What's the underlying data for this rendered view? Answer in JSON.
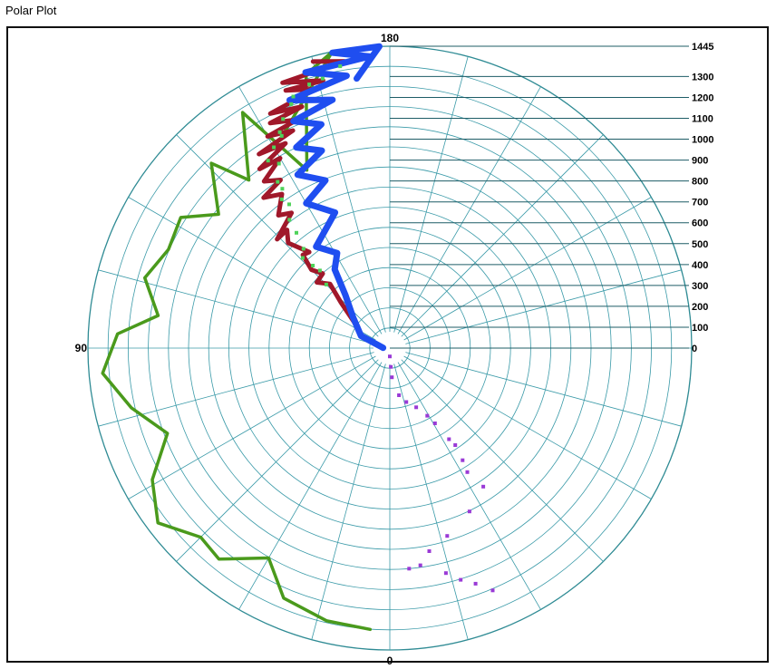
{
  "window": {
    "title": "Polar Plot"
  },
  "colors": {
    "grid": "#3a9aa8",
    "rim": "#2f8b94",
    "tick_line": "#1d5c66",
    "green": "#4a9a1c",
    "red": "#a0182a",
    "blue": "#1f4ef0",
    "green_dots": "#4fd35a",
    "purple_dots": "#9a3ad6"
  },
  "chart_data": {
    "type": "polar",
    "title": "",
    "angle_labels": {
      "top": "180",
      "left": "90",
      "bottom": "0"
    },
    "radial_ticks": [
      "1445",
      "1300",
      "1200",
      "1100",
      "1000",
      "900",
      "800",
      "700",
      "600",
      "500",
      "400",
      "300",
      "200",
      "100",
      "0"
    ],
    "radial_tick_values": [
      1445,
      1300,
      1200,
      1100,
      1000,
      900,
      800,
      700,
      600,
      500,
      400,
      300,
      200,
      100,
      0
    ],
    "r_range": [
      0,
      1445
    ],
    "rings": 15,
    "spokes_deg": 15,
    "grid": true,
    "series": [
      {
        "type": "line",
        "color": "green",
        "points": [
          [
            152,
            1125
          ],
          [
            169,
            1445
          ],
          [
            163,
            1370
          ],
          [
            155,
            940
          ],
          [
            148,
            1330
          ],
          [
            140,
            1050
          ],
          [
            136,
            1230
          ],
          [
            128,
            1040
          ],
          [
            122,
            1180
          ],
          [
            114,
            1160
          ],
          [
            106,
            1220
          ],
          [
            98,
            1120
          ],
          [
            93,
            1305
          ],
          [
            85,
            1380
          ],
          [
            77,
            1270
          ],
          [
            69,
            1140
          ],
          [
            61,
            1300
          ],
          [
            53,
            1390
          ],
          [
            45,
            1280
          ],
          [
            39,
            1300
          ],
          [
            30,
            1160
          ],
          [
            23,
            1300
          ],
          [
            13,
            1340
          ],
          [
            4,
            1350
          ]
        ]
      },
      {
        "type": "line",
        "color": "red",
        "points": [
          [
            92,
            32
          ],
          [
            111,
            140
          ],
          [
            126,
            210
          ],
          [
            133,
            320
          ],
          [
            137,
            420
          ],
          [
            132,
            470
          ],
          [
            138,
            480
          ],
          [
            135,
            530
          ],
          [
            137,
            610
          ],
          [
            140,
            600
          ],
          [
            136,
            700
          ],
          [
            139,
            750
          ],
          [
            134,
            750
          ],
          [
            144,
            800
          ],
          [
            140,
            830
          ],
          [
            145,
            900
          ],
          [
            140,
            940
          ],
          [
            147,
            960
          ],
          [
            143,
            1000
          ],
          [
            150,
            1050
          ],
          [
            144,
            1060
          ],
          [
            153,
            1100
          ],
          [
            146,
            1120
          ],
          [
            156,
            1140
          ],
          [
            150,
            1170
          ],
          [
            158,
            1180
          ],
          [
            152,
            1220
          ],
          [
            160,
            1230
          ],
          [
            153,
            1260
          ],
          [
            164,
            1290
          ],
          [
            158,
            1330
          ],
          [
            166,
            1320
          ],
          [
            158,
            1370
          ],
          [
            171,
            1390
          ],
          [
            165,
            1420
          ]
        ]
      },
      {
        "type": "line",
        "color": "blue",
        "points": [
          [
            92,
            32
          ],
          [
            113,
            150
          ],
          [
            130,
            230
          ],
          [
            140,
            330
          ],
          [
            145,
            460
          ],
          [
            151,
            520
          ],
          [
            144,
            600
          ],
          [
            158,
            700
          ],
          [
            150,
            800
          ],
          [
            159,
            860
          ],
          [
            152,
            940
          ],
          [
            161,
            1000
          ],
          [
            155,
            1060
          ],
          [
            163,
            1120
          ],
          [
            157,
            1180
          ],
          [
            167,
            1220
          ],
          [
            158,
            1280
          ],
          [
            171,
            1320
          ],
          [
            163,
            1380
          ],
          [
            176,
            1400
          ],
          [
            169,
            1440
          ],
          [
            178,
            1445
          ],
          [
            173,
            1300
          ]
        ]
      },
      {
        "type": "scatter",
        "color": "green_dots",
        "points": [
          [
            135,
            430
          ],
          [
            138,
            500
          ],
          [
            137,
            540
          ],
          [
            136,
            600
          ],
          [
            139,
            630
          ],
          [
            141,
            710
          ],
          [
            142,
            780
          ],
          [
            145,
            840
          ],
          [
            144,
            880
          ],
          [
            146,
            920
          ],
          [
            146,
            960
          ],
          [
            149,
            1030
          ],
          [
            147,
            1070
          ],
          [
            150,
            1110
          ],
          [
            153,
            1140
          ],
          [
            153,
            1160
          ],
          [
            155,
            1210
          ],
          [
            158,
            1260
          ],
          [
            159,
            1290
          ],
          [
            163,
            1320
          ],
          [
            166,
            1330
          ],
          [
            170,
            1370
          ]
        ]
      },
      {
        "type": "scatter",
        "color": "purple_dots",
        "points": [
          [
            0,
            40
          ],
          [
            -3,
            90
          ],
          [
            -4,
            140
          ],
          [
            -11,
            230
          ],
          [
            -17,
            270
          ],
          [
            -24,
            310
          ],
          [
            -29,
            370
          ],
          [
            -31,
            420
          ],
          [
            -33,
            520
          ],
          [
            -34,
            560
          ],
          [
            -33,
            640
          ],
          [
            -32,
            700
          ],
          [
            -34,
            800
          ],
          [
            -26,
            870
          ],
          [
            -17,
            940
          ],
          [
            -11,
            990
          ],
          [
            -8,
            1050
          ],
          [
            -5,
            1060
          ],
          [
            -14,
            1110
          ],
          [
            -17,
            1160
          ],
          [
            -20,
            1200
          ],
          [
            -23,
            1260
          ]
        ]
      }
    ]
  }
}
